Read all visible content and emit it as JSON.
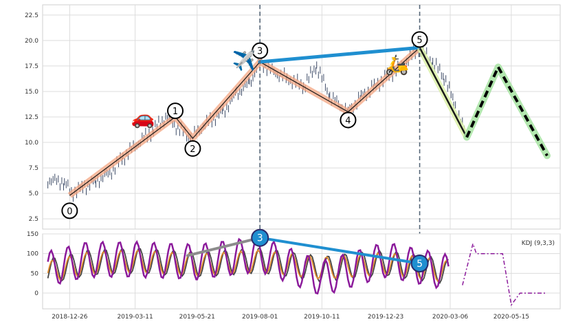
{
  "chart_data": [
    {
      "type": "line",
      "subtype": "candlestick_with_wave_annotations",
      "grid": true,
      "ylim": [
        1.5,
        23.5
      ],
      "y_ticks": [
        2.5,
        5.0,
        7.5,
        10.0,
        12.5,
        15.0,
        17.5,
        20.0,
        22.5
      ],
      "y_tick_labels": [
        "2.5",
        "5.0",
        "7.5",
        "10.0",
        "12.5",
        "15.0",
        "17.5",
        "20.0",
        "22.5"
      ],
      "x_dates": [
        "2018-12-26",
        "2019-03-11",
        "2019-05-21",
        "2019-08-01",
        "2019-10-11",
        "2019-12-23",
        "2020-03-06",
        "2020-05-15"
      ],
      "price_points": [
        [
          "2018-12-01",
          6.3
        ],
        [
          "2018-12-20",
          6.1
        ],
        [
          "2018-12-28",
          5.0
        ],
        [
          "2019-01-10",
          5.6
        ],
        [
          "2019-01-25",
          6.2
        ],
        [
          "2019-02-10",
          7.0
        ],
        [
          "2019-02-25",
          8.5
        ],
        [
          "2019-03-15",
          10.0
        ],
        [
          "2019-04-01",
          11.2
        ],
        [
          "2019-04-15",
          12.5
        ],
        [
          "2019-05-01",
          11.3
        ],
        [
          "2019-05-14",
          10.4
        ],
        [
          "2019-05-30",
          11.8
        ],
        [
          "2019-06-20",
          13.0
        ],
        [
          "2019-07-05",
          14.8
        ],
        [
          "2019-07-20",
          15.8
        ],
        [
          "2019-08-01",
          17.9
        ],
        [
          "2019-08-15",
          17.0
        ],
        [
          "2019-09-01",
          16.3
        ],
        [
          "2019-09-20",
          15.5
        ],
        [
          "2019-10-05",
          17.5
        ],
        [
          "2019-10-20",
          14.5
        ],
        [
          "2019-11-10",
          13.0
        ],
        [
          "2019-11-25",
          14.5
        ],
        [
          "2019-12-10",
          15.5
        ],
        [
          "2019-12-25",
          16.5
        ],
        [
          "2020-01-10",
          17.5
        ],
        [
          "2020-01-31",
          19.3
        ],
        [
          "2020-02-15",
          17.8
        ],
        [
          "2020-02-28",
          16.5
        ],
        [
          "2020-03-10",
          14.0
        ],
        [
          "2020-03-25",
          10.5
        ]
      ],
      "wave_points": [
        {
          "label": "0",
          "date": "2018-12-26",
          "value": 4.8,
          "label_value": 3.3
        },
        {
          "label": "1",
          "date": "2019-04-26",
          "value": 12.5,
          "label_value": 13.1
        },
        {
          "label": "2",
          "date": "2019-05-16",
          "value": 10.4,
          "label_value": 9.4
        },
        {
          "label": "3",
          "date": "2019-08-01",
          "value": 17.9,
          "label_value": 19.0
        },
        {
          "label": "4",
          "date": "2019-11-10",
          "value": 13.0,
          "label_value": 12.2
        },
        {
          "label": "5",
          "date": "2020-01-31",
          "value": 19.3,
          "label_value": 20.1
        }
      ],
      "trend_line": [
        [
          "2019-08-01",
          17.9
        ],
        [
          "2020-01-31",
          19.3
        ]
      ],
      "decline_segment": [
        [
          "2020-01-31",
          19.3
        ],
        [
          "2020-03-25",
          10.5
        ]
      ],
      "forecast_path": [
        [
          "2020-03-25",
          10.5
        ],
        [
          "2020-04-30",
          17.4
        ],
        [
          "2020-06-25",
          8.7
        ]
      ],
      "vertical_markers": [
        "2019-08-01",
        "2020-01-31"
      ],
      "emoji_markers": [
        {
          "glyph": "🚗",
          "date": "2019-03-20",
          "value": 11.8
        },
        {
          "glyph": "✈️",
          "date": "2019-07-14",
          "value": 17.4
        },
        {
          "glyph": "🛵",
          "date": "2020-01-05",
          "value": 17.0
        }
      ],
      "colors": {
        "candle": "#3c4a66",
        "wave_fill": "#f4a582",
        "wave_line": "#1a1a1a",
        "trend": "#1f8fd0",
        "decline": "#1a1a1a",
        "decline_fill": "#d9f0a3",
        "forecast_fill": "#a6e3a1",
        "forecast_line": "#000000",
        "marker": "#556677"
      }
    },
    {
      "type": "line",
      "legend": "KDJ (9,3,3)",
      "legend_position": "top-right",
      "grid": true,
      "ylim": [
        -40,
        150
      ],
      "y_ticks": [
        0,
        50,
        100,
        150
      ],
      "y_tick_labels": [
        "0",
        "50",
        "100",
        "150"
      ],
      "series": [
        {
          "key": "K",
          "color": "#444444",
          "values": [
            [
              "2018-12-01",
              25
            ],
            [
              "2019-01-15",
              80
            ],
            [
              "2019-03-11",
              95
            ],
            [
              "2019-05-21",
              70
            ],
            [
              "2019-08-01",
              95
            ],
            [
              "2019-10-11",
              40
            ],
            [
              "2019-12-23",
              80
            ],
            [
              "2020-03-06",
              20
            ]
          ]
        },
        {
          "key": "D",
          "color": "#e08a2c",
          "values": [
            [
              "2018-12-01",
              20
            ],
            [
              "2019-01-15",
              75
            ],
            [
              "2019-03-11",
              90
            ],
            [
              "2019-05-21",
              65
            ],
            [
              "2019-08-01",
              90
            ],
            [
              "2019-10-11",
              45
            ],
            [
              "2019-12-23",
              75
            ],
            [
              "2020-03-06",
              22
            ]
          ]
        },
        {
          "key": "J",
          "color": "#8b1a9b",
          "values": [
            [
              "2018-12-01",
              40
            ],
            [
              "2019-01-15",
              100
            ],
            [
              "2019-03-11",
              100
            ],
            [
              "2019-05-21",
              85
            ],
            [
              "2019-08-01",
              135
            ],
            [
              "2019-10-11",
              -20
            ],
            [
              "2019-12-23",
              100
            ],
            [
              "2020-03-06",
              15
            ]
          ]
        }
      ],
      "forecast_kdj": [
        [
          "2020-03-20",
          20
        ],
        [
          "2020-04-01",
          125
        ],
        [
          "2020-04-05",
          100
        ],
        [
          "2020-05-05",
          100
        ],
        [
          "2020-05-15",
          -30
        ],
        [
          "2020-05-25",
          0
        ],
        [
          "2020-06-25",
          0
        ]
      ],
      "divergence_lines": [
        {
          "color": "#8c8c8c",
          "points": [
            [
              "2019-05-10",
              95
            ],
            [
              "2019-08-01",
              140
            ]
          ]
        },
        {
          "color": "#1f8fd0",
          "points": [
            [
              "2019-08-01",
              140
            ],
            [
              "2020-01-31",
              75
            ]
          ]
        }
      ],
      "circle_markers": [
        {
          "label": "3",
          "date": "2019-08-01",
          "value": 140
        },
        {
          "label": "5",
          "date": "2020-01-31",
          "value": 75
        }
      ]
    }
  ]
}
